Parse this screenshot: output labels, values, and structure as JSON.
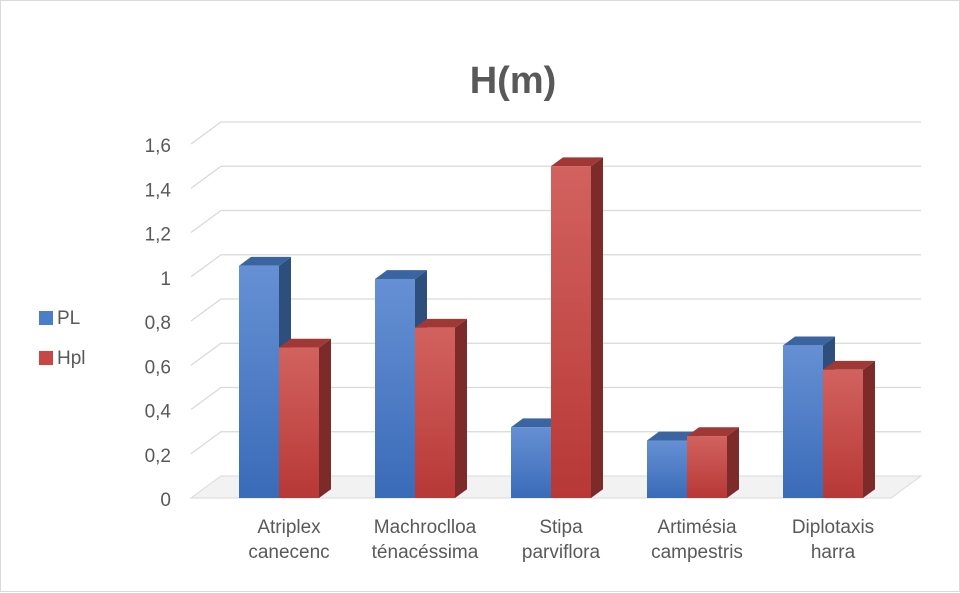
{
  "chart_data": {
    "type": "bar",
    "title": "H(m)",
    "xlabel": "",
    "ylabel": "",
    "categories": [
      [
        "Atriplex",
        "canecenc"
      ],
      [
        "Machroclloa",
        "ténacéssima"
      ],
      [
        "Stipa",
        "parviflora"
      ],
      [
        "Artimésia",
        "campestris"
      ],
      [
        "Diplotaxis",
        "harra"
      ]
    ],
    "series": [
      {
        "name": "PL",
        "values": [
          1.05,
          0.99,
          0.32,
          0.26,
          0.69
        ],
        "color": "#4a7ec8"
      },
      {
        "name": "Hpl",
        "values": [
          0.68,
          0.77,
          1.5,
          0.28,
          0.58
        ],
        "color": "#c84644"
      }
    ],
    "ylim": [
      0,
      1.6
    ],
    "yticks": [
      "0",
      "0,2",
      "0,4",
      "0,6",
      "0,8",
      "1",
      "1,2",
      "1,4",
      "1,6"
    ],
    "grid": true,
    "legend_position": "left",
    "style": "3d-clustered-column"
  }
}
